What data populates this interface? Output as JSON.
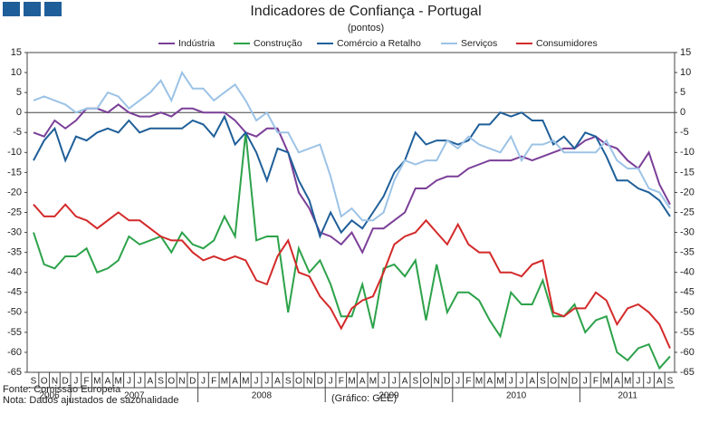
{
  "chart_data": {
    "type": "line",
    "title": "Indicadores de Confiança - Portugal",
    "subtitle": "(pontos)",
    "categories": [
      "S",
      "O",
      "N",
      "D",
      "J",
      "F",
      "M",
      "A",
      "M",
      "J",
      "J",
      "A",
      "S",
      "O",
      "N",
      "D",
      "J",
      "F",
      "M",
      "A",
      "M",
      "J",
      "J",
      "A",
      "S",
      "O",
      "N",
      "D",
      "J",
      "F",
      "M",
      "A",
      "M",
      "J",
      "J",
      "A",
      "S",
      "O",
      "N",
      "D",
      "J",
      "F",
      "M",
      "A",
      "M",
      "J",
      "J",
      "A",
      "S",
      "O",
      "N",
      "D",
      "J",
      "F",
      "M",
      "A",
      "M",
      "J",
      "J",
      "A",
      "S"
    ],
    "years": [
      "2006",
      "2007",
      "2008",
      "2009",
      "2010",
      "2011"
    ],
    "ylim": [
      -65,
      15
    ],
    "yticks": [
      -65,
      -60,
      -55,
      -50,
      -45,
      -40,
      -35,
      -30,
      -25,
      -20,
      -15,
      -10,
      -5,
      0,
      5,
      10,
      15
    ],
    "grid": false,
    "series": [
      {
        "name": "Indústria",
        "color": "#7b3f98",
        "values": [
          -5,
          -6,
          -2,
          -4,
          -2,
          1,
          1,
          0,
          2,
          0,
          -1,
          -1,
          0,
          -1,
          1,
          1,
          0,
          0,
          0,
          -2,
          -5,
          -6,
          -4,
          -4,
          -10,
          -20,
          -24,
          -30,
          -31,
          -33,
          -30,
          -35,
          -29,
          -29,
          -27,
          -25,
          -19,
          -19,
          -17,
          -16,
          -16,
          -14,
          -13,
          -12,
          -12,
          -12,
          -11,
          -12,
          -11,
          -10,
          -9,
          -9,
          -7,
          -6,
          -8,
          -9,
          -12,
          -14,
          -10,
          -18,
          -23
        ]
      },
      {
        "name": "Construção",
        "color": "#2ca24a",
        "values": [
          -30,
          -38,
          -39,
          -36,
          -36,
          -34,
          -40,
          -39,
          -37,
          -31,
          -33,
          -32,
          -31,
          -35,
          -30,
          -33,
          -34,
          -32,
          -26,
          -31,
          -5,
          -32,
          -31,
          -31,
          -50,
          -34,
          -40,
          -37,
          -43,
          -51,
          -51,
          -43,
          -54,
          -39,
          -38,
          -41,
          -37,
          -52,
          -38,
          -50,
          -45,
          -45,
          -47,
          -52,
          -56,
          -45,
          -48,
          -48,
          -42,
          -51,
          -51,
          -48,
          -55,
          -52,
          -51,
          -60,
          -62,
          -59,
          -58,
          -64,
          -61
        ]
      },
      {
        "name": "Comércio a Retalho",
        "color": "#1f5f99",
        "values": [
          -12,
          -7,
          -4,
          -12,
          -6,
          -7,
          -5,
          -4,
          -5,
          -2,
          -5,
          -4,
          -4,
          -4,
          -4,
          -2,
          -3,
          -6,
          -1,
          -8,
          -5,
          -10,
          -17,
          -9,
          -10,
          -17,
          -22,
          -31,
          -25,
          -30,
          -27,
          -29,
          -25,
          -21,
          -15,
          -12,
          -5,
          -8,
          -7,
          -7,
          -8,
          -7,
          -3,
          -3,
          0,
          -1,
          0,
          -2,
          -2,
          -8,
          -6,
          -9,
          -5,
          -6,
          -11,
          -17,
          -17,
          -19,
          -20,
          -22,
          -26
        ]
      },
      {
        "name": "Serviços",
        "color": "#9cc3e6",
        "values": [
          3,
          4,
          3,
          2,
          0,
          1,
          1,
          5,
          4,
          1,
          3,
          5,
          8,
          3,
          10,
          6,
          6,
          3,
          5,
          7,
          3,
          -2,
          0,
          -5,
          -5,
          -10,
          -9,
          -8,
          -16,
          -26,
          -24,
          -27,
          -27,
          -25,
          -17,
          -12,
          -13,
          -12,
          -12,
          -7,
          -9,
          -6,
          -8,
          -9,
          -10,
          -6,
          -12,
          -8,
          -8,
          -7,
          -10,
          -10,
          -10,
          -10,
          -7,
          -12,
          -14,
          -14,
          -19,
          -20,
          -24
        ]
      },
      {
        "name": "Consumidores",
        "color": "#d42a2a",
        "values": [
          -23,
          -26,
          -26,
          -23,
          -26,
          -27,
          -29,
          -27,
          -25,
          -27,
          -27,
          -29,
          -31,
          -32,
          -32,
          -35,
          -37,
          -36,
          -37,
          -36,
          -37,
          -42,
          -43,
          -36,
          -32,
          -40,
          -41,
          -46,
          -49,
          -54,
          -49,
          -47,
          -46,
          -40,
          -33,
          -31,
          -30,
          -27,
          -30,
          -33,
          -28,
          -33,
          -35,
          -35,
          -40,
          -40,
          -41,
          -38,
          -37,
          -50,
          -51,
          -49,
          -49,
          -45,
          -47,
          -53,
          -49,
          -48,
          -50,
          -53,
          -59
        ]
      }
    ],
    "source": "Fonte: Comissão Europeia",
    "note": "Nota: Dados ajustados de sazonalidade",
    "credit": "(Gráfico: GEE)"
  }
}
